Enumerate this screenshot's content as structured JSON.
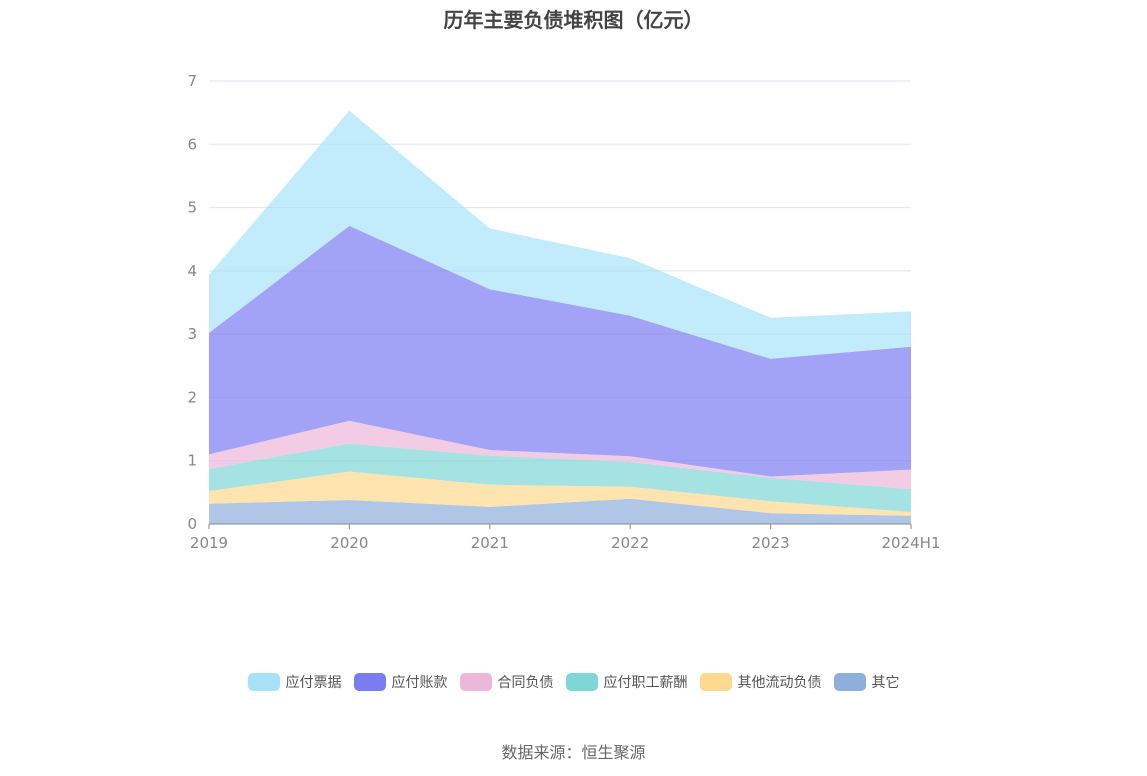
{
  "chart_data": {
    "type": "area",
    "title": "历年主要负债堆积图（亿元）",
    "categories": [
      "2019",
      "2020",
      "2021",
      "2022",
      "2023",
      "2024H1"
    ],
    "ylim": [
      0,
      7
    ],
    "yticks": [
      "0",
      "1",
      "2",
      "3",
      "4",
      "5",
      "6",
      "7"
    ],
    "stacked": true,
    "grid": true,
    "legend_position": "bottom",
    "series": [
      {
        "name": "其它",
        "color": "#8eaedc",
        "values": [
          0.32,
          0.38,
          0.27,
          0.4,
          0.17,
          0.13
        ]
      },
      {
        "name": "其他流动负债",
        "color": "#ffd98f",
        "values": [
          0.2,
          0.45,
          0.35,
          0.19,
          0.19,
          0.06
        ]
      },
      {
        "name": "应付职工薪酬",
        "color": "#7fd6d6",
        "values": [
          0.35,
          0.44,
          0.46,
          0.39,
          0.37,
          0.36
        ]
      },
      {
        "name": "合同负债",
        "color": "#ecb7d9",
        "values": [
          0.23,
          0.36,
          0.09,
          0.09,
          0.02,
          0.31
        ]
      },
      {
        "name": "应付账款",
        "color": "#7b7cf2",
        "values": [
          1.92,
          3.08,
          2.54,
          2.22,
          1.86,
          1.94
        ]
      },
      {
        "name": "应付票据",
        "color": "#a8e2f9",
        "values": [
          0.92,
          1.82,
          0.96,
          0.91,
          0.65,
          0.56
        ]
      }
    ],
    "legend_order": [
      "应付票据",
      "应付账款",
      "合同负债",
      "应付职工薪酬",
      "其他流动负债",
      "其它"
    ]
  },
  "legend": [
    "应付票据",
    "应付账款",
    "合同负债",
    "应付职工薪酬",
    "其他流动负债",
    "其它"
  ],
  "source": "数据来源：恒生聚源"
}
